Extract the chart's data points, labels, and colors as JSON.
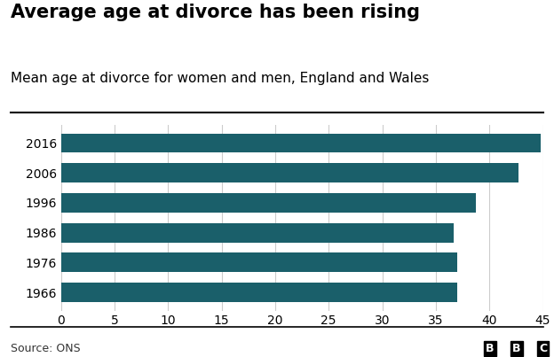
{
  "title": "Average age at divorce has been rising",
  "subtitle": "Mean age at divorce for women and men, England and Wales",
  "categories": [
    "2016",
    "2006",
    "1996",
    "1986",
    "1976",
    "1966"
  ],
  "values": [
    44.8,
    42.7,
    38.7,
    36.7,
    37.0,
    37.0
  ],
  "bar_color": "#1a5f6a",
  "xlim": [
    0,
    45
  ],
  "xticks": [
    0,
    5,
    10,
    15,
    20,
    25,
    30,
    35,
    40,
    45
  ],
  "source_text": "Source: ONS",
  "bbc_text": "BBC",
  "background_color": "#ffffff",
  "title_fontsize": 15,
  "subtitle_fontsize": 11,
  "tick_fontsize": 10,
  "bar_height": 0.65
}
